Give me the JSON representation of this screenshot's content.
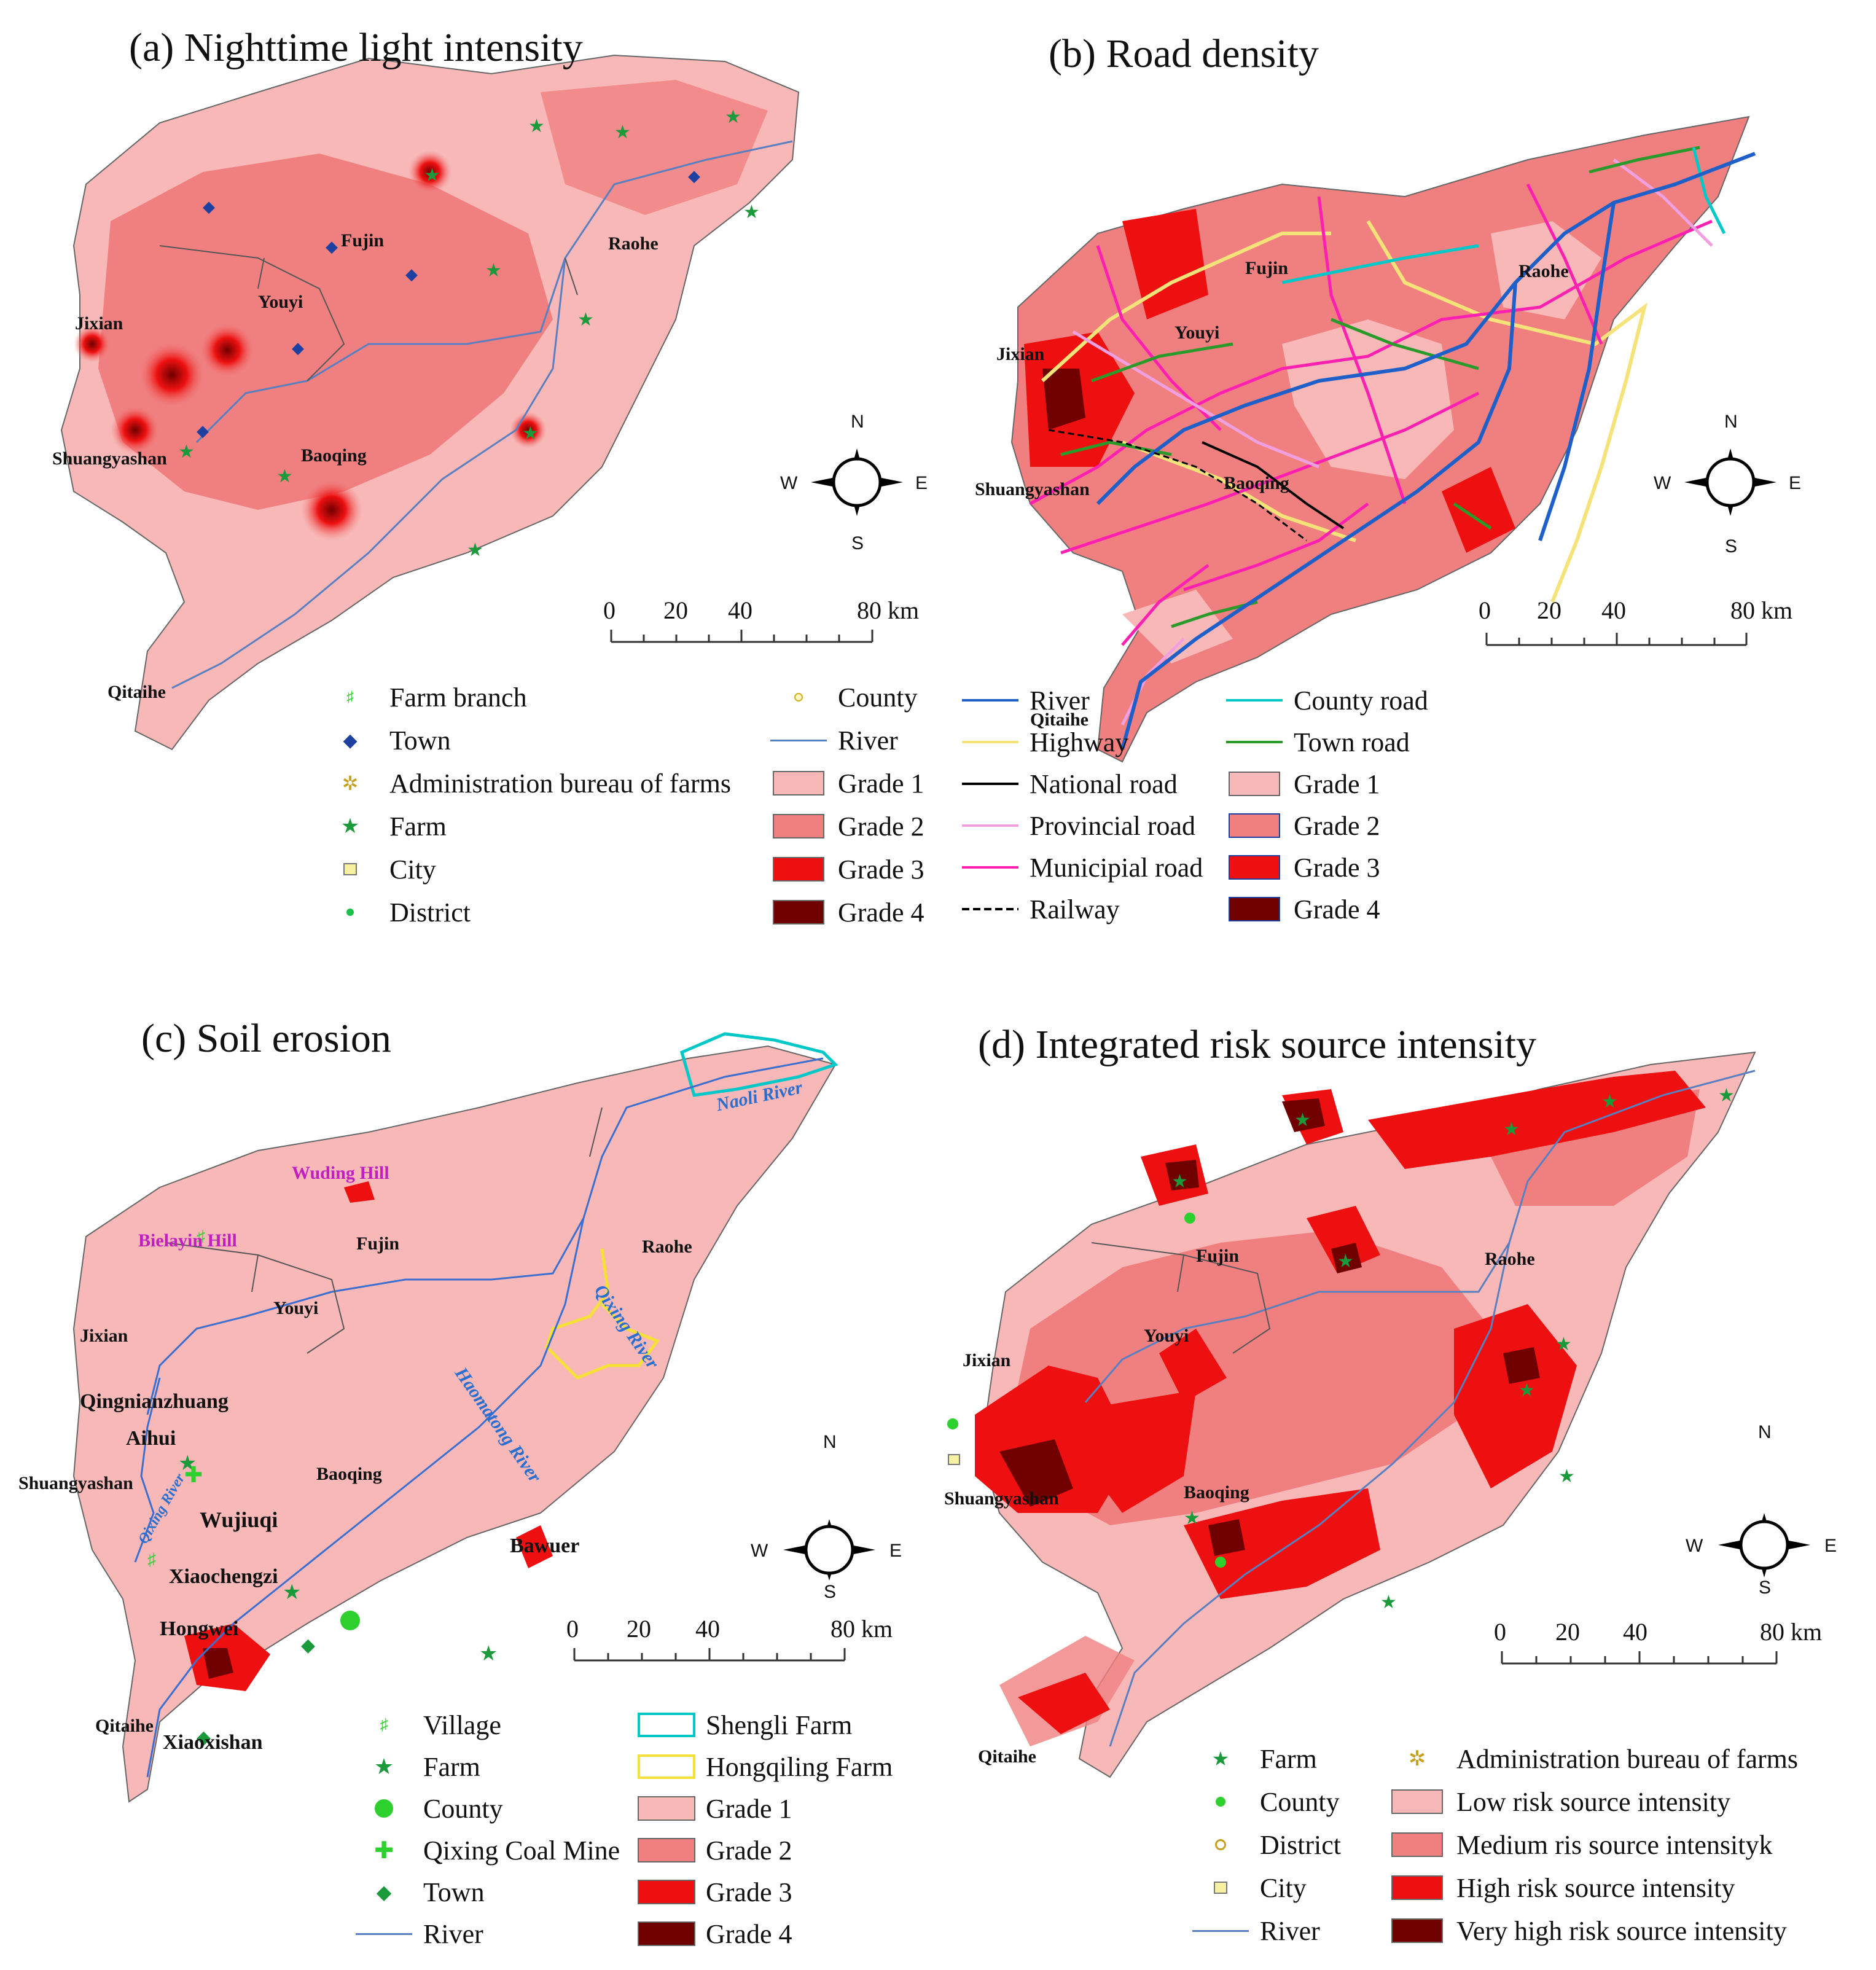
{
  "colors": {
    "background": "#ffffff",
    "grade1": "#f8b8b8",
    "grade2": "#f08080",
    "grade3": "#ee1010",
    "grade4": "#700000",
    "river": "#5a7fc0",
    "river_b": "#1f5fc8",
    "highway": "#f5e37a",
    "national_road": "#000000",
    "provincial_road": "#f0a0e0",
    "municipal_road": "#ff1fb0",
    "county_road": "#00c8c8",
    "town_road": "#2a9a2a",
    "farm": "#1a9a3a",
    "town": "#1e40a0"
  },
  "panel_a": {
    "title": "(a) Nighttime light intensity",
    "places": [
      "Fujin",
      "Raohe",
      "Youyi",
      "Jixian",
      "Shuangyashan",
      "Baoqing",
      "Qitaihe"
    ],
    "scale": {
      "t0": "0",
      "t1": "20",
      "t2": "40",
      "t3": "80 km"
    },
    "compass": {
      "n": "N",
      "s": "S",
      "e": "E",
      "w": "W"
    },
    "legend": {
      "farm_branch": "Farm branch",
      "town": "Town",
      "admin_bureau": "Administration bureau of farms",
      "farm": "Farm",
      "city": "City",
      "district": "District",
      "county": "County",
      "river": "River",
      "grade1": "Grade 1",
      "grade2": "Grade 2",
      "grade3": "Grade 3",
      "grade4": "Grade 4"
    }
  },
  "panel_b": {
    "title": "(b)  Road density",
    "places": [
      "Fujin",
      "Raohe",
      "Youyi",
      "Jixian",
      "Shuangyashan",
      "Baoqing",
      "Qitaihe"
    ],
    "scale": {
      "t0": "0",
      "t1": "20",
      "t2": "40",
      "t3": "80 km"
    },
    "compass": {
      "n": "N",
      "s": "S",
      "e": "E",
      "w": "W"
    },
    "legend": {
      "river": "River",
      "highway": "Highway",
      "national_road": "National road",
      "provincial_road": "Provincial road",
      "municipal_road": "Municipial road",
      "railway": "Railway",
      "county_road": "County road",
      "town_road": "Town road",
      "grade1": "Grade 1",
      "grade2": "Grade 2",
      "grade3": "Grade 3",
      "grade4": "Grade 4"
    }
  },
  "panel_c": {
    "title": "(c)  Soil erosion",
    "places": [
      "Fujin",
      "Raohe",
      "Youyi",
      "Jixian",
      "Qingnianzhuang",
      "Aihui",
      "Shuangyashan",
      "Baoqing",
      "Wujiuqi",
      "Xiaochengzi",
      "Bawuer",
      "Hongwei",
      "Qitaihe",
      "Xiaoxishan"
    ],
    "hills": [
      "Wuding Hill",
      "Bielayin Hill"
    ],
    "rivers": [
      "Naoli River",
      "Qixing River",
      "Haomatong River",
      "Qixing River"
    ],
    "scale": {
      "t0": "0",
      "t1": "20",
      "t2": "40",
      "t3": "80 km"
    },
    "compass": {
      "n": "N",
      "s": "S",
      "e": "E",
      "w": "W"
    },
    "legend": {
      "village": "Village",
      "farm": "Farm",
      "county": "County",
      "coal_mine": "Qixing Coal Mine",
      "town": "Town",
      "river": "River",
      "shengli_farm": "Shengli Farm",
      "hongqiling_farm": "Hongqiling Farm",
      "grade1": "Grade 1",
      "grade2": "Grade 2",
      "grade3": "Grade 3",
      "grade4": "Grade 4"
    }
  },
  "panel_d": {
    "title": "(d) Integrated risk source intensity",
    "places": [
      "Fujin",
      "Raohe",
      "Youyi",
      "Jixian",
      "Shuangyashan",
      "Baoqing",
      "Qitaihe"
    ],
    "scale": {
      "t0": "0",
      "t1": "20",
      "t2": "40",
      "t3": "80 km"
    },
    "compass": {
      "n": "N",
      "s": "S",
      "e": "E",
      "w": "W"
    },
    "legend": {
      "farm": "Farm",
      "county": "County",
      "district": "District",
      "city": "City",
      "river": "River",
      "admin_bureau": "Administration bureau of farms",
      "low": "Low risk source intensity",
      "medium": "Medium ris source intensityk",
      "high": "High risk source intensity",
      "very_high": "Very high risk source intensity"
    }
  }
}
